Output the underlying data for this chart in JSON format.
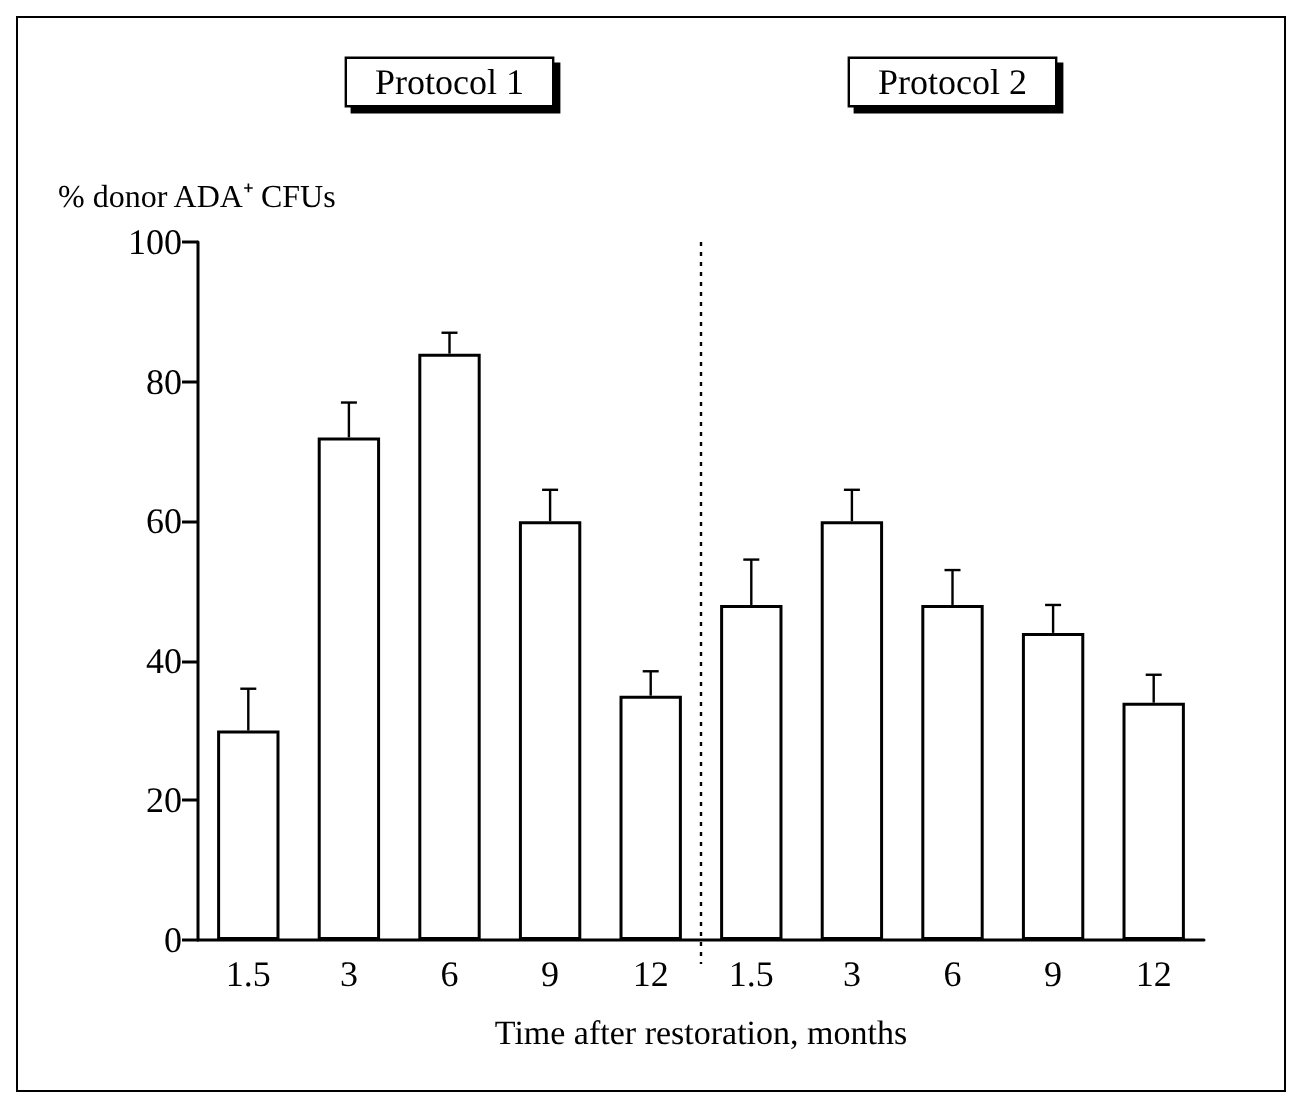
{
  "chart_data": {
    "type": "bar",
    "xlabel": "Time after restoration, months",
    "ylabel": "% donor ADA⁺ CFUs",
    "categories": [
      "1.5",
      "3",
      "6",
      "9",
      "12",
      "1.5",
      "3",
      "6",
      "9",
      "12"
    ],
    "series": [
      {
        "name": "Protocol 1",
        "color": "#ffffff",
        "values": [
          30,
          72,
          84,
          60,
          35,
          null,
          null,
          null,
          null,
          null
        ],
        "errors": [
          [
            30,
            36
          ],
          [
            72,
            77
          ],
          [
            84,
            87
          ],
          [
            60,
            64.5
          ],
          [
            35,
            38.5
          ],
          null,
          null,
          null,
          null,
          null
        ]
      },
      {
        "name": "Protocol 2",
        "color": "#ffffff",
        "values": [
          null,
          null,
          null,
          null,
          null,
          48,
          60,
          48,
          44,
          34
        ],
        "errors": [
          null,
          null,
          null,
          null,
          null,
          [
            48,
            54.5
          ],
          [
            60,
            64.5
          ],
          [
            48,
            53
          ],
          [
            44,
            48
          ],
          [
            34,
            38
          ]
        ]
      }
    ],
    "ylim": [
      0,
      100
    ],
    "yticks": [
      0,
      20,
      40,
      60,
      80,
      100
    ],
    "grid": false,
    "legend": false
  }
}
